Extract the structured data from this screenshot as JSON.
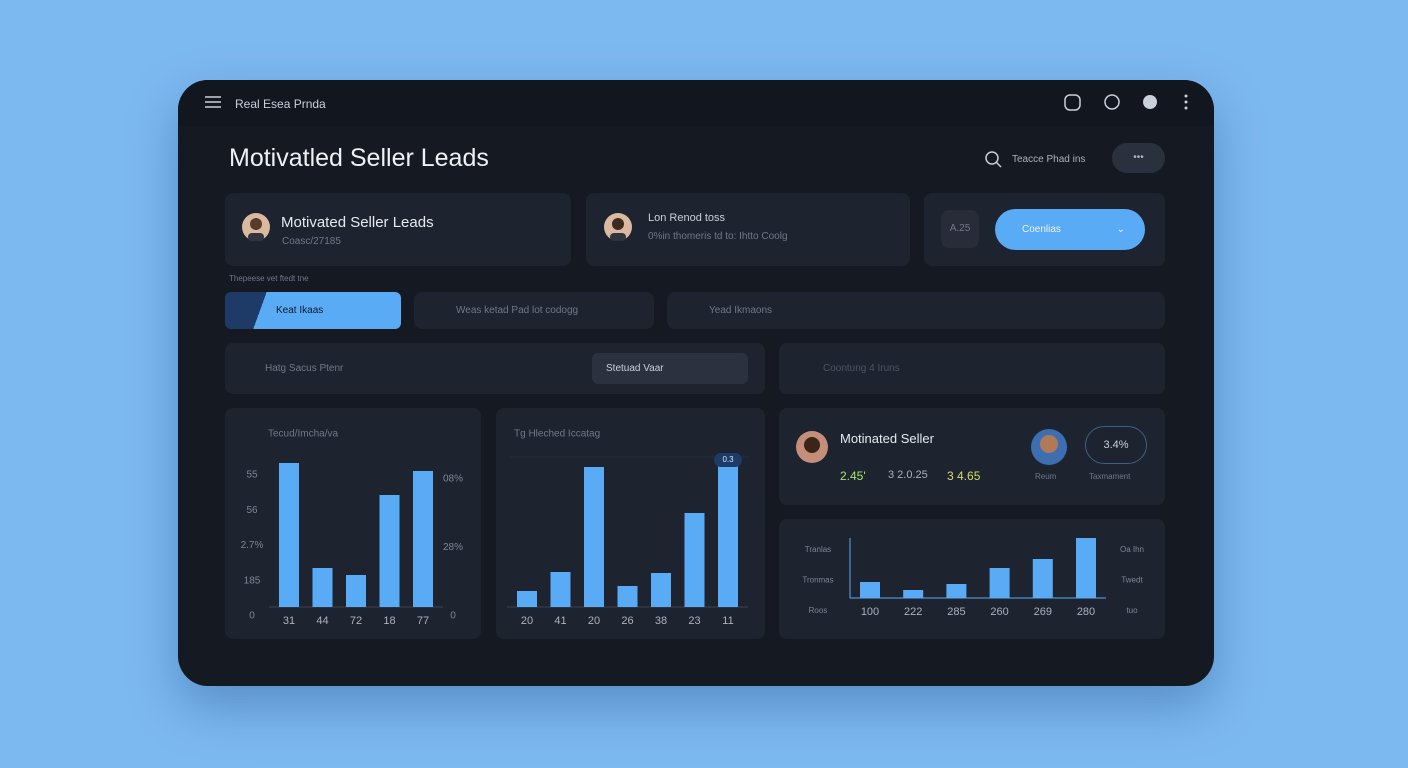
{
  "header": {
    "app_name": "Real Esea Prnda"
  },
  "page_title": "Motivatled Seller Leads",
  "search": {
    "placeholder": "Teacce Phad ins",
    "more": "•••"
  },
  "cards": [
    {
      "title": "Motivated Seller Leads",
      "subtitle": "Coasc/27185"
    },
    {
      "title": "Lon Renod toss",
      "subtitle": "0%in thomeris td to: Ihtto Coolg"
    }
  ],
  "action": {
    "badge": "A.25",
    "button": "Coenlias"
  },
  "section_label": "Thepeese   vet   ftedt  tne",
  "filters": [
    "Keat Ikaas",
    "Weas ketad Pad lot codogg",
    "Yead Ikmaons"
  ],
  "row2": {
    "left_label": "Hatg Sacus Ptenr",
    "select": "Stetuad Vaar",
    "right_label": "Coontung   4 Iruns"
  },
  "profile": {
    "name": "Motinated Seller",
    "stats": [
      "2.45'",
      "3 2.0.25",
      "3 4.65"
    ],
    "gauge": "3.4%",
    "captions": [
      "Reum",
      "Taxmament"
    ]
  },
  "charts": [
    {
      "type": "bar",
      "title": "Tecud/Imcha/va",
      "categories": [
        "31",
        "44",
        "72",
        "18",
        "77"
      ],
      "values": [
        144,
        39,
        32,
        112,
        136
      ],
      "ylim": [
        0,
        150
      ],
      "left_labels": [
        "55",
        "56",
        "2.7%",
        "185",
        "0"
      ],
      "right_labels": [
        "08%",
        "28%",
        "0"
      ],
      "color": "#5aabf5"
    },
    {
      "type": "bar",
      "title": "Tg Hleched Iccatag",
      "categories": [
        "20",
        "41",
        "20",
        "26",
        "38",
        "23",
        "11"
      ],
      "values": [
        16,
        35,
        140,
        21,
        34,
        94,
        145
      ],
      "ylim": [
        0,
        150
      ],
      "badge": "0.3",
      "color": "#5aabf5"
    },
    {
      "type": "bar",
      "categories": [
        "100",
        "222",
        "285",
        "260",
        "269",
        "280"
      ],
      "values": [
        16,
        8,
        14,
        30,
        39,
        60
      ],
      "ylim": [
        0,
        70
      ],
      "left_labels": [
        "Tranlas",
        "Tronmas",
        "Roos"
      ],
      "right_labels": [
        "Oa Ihn",
        "Twedt",
        "tuo"
      ],
      "color": "#5aabf5"
    }
  ]
}
